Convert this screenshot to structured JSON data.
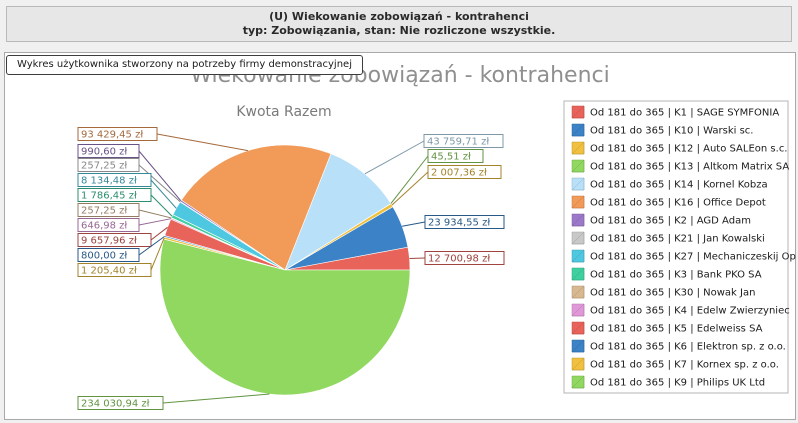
{
  "header": {
    "line1": "(U) Wiekowanie zobowiązań - kontrahenci",
    "line2": "typ: Zobowiązania, stan: Nie rozliczone wszystkie."
  },
  "tooltip": "Wykres użytkownika  stworzony na potrzeby firmy demonstracyjnej",
  "chart_data": {
    "type": "pie",
    "title": "Wiekowanie zobowiązań - kontrahenci",
    "subtitle": "Kwota Razem",
    "legend_placement": "right",
    "slices": [
      {
        "name": "Od 181 do 365 | K1 | SAGE SYMFONIA",
        "value": 12700.98,
        "label": "12 700,98 zł",
        "color": "#e8635a"
      },
      {
        "name": "Od 181 do 365 | K10 | Warski sc.",
        "value": 23934.55,
        "label": "23 934,55 zł",
        "color": "#3b83c6"
      },
      {
        "name": "Od 181 do 365 | K12 | Auto SALEon s.c.",
        "value": 2007.36,
        "label": "2 007,36 zł",
        "color": "#f0c040"
      },
      {
        "name": "Od 181 do 365 | K13 | Altkom Matrix SA",
        "value": 45.51,
        "label": "45,51 zł",
        "color": "#90d860"
      },
      {
        "name": "Od 181 do 365 | K14 | Kornel Kobza",
        "value": 43759.71,
        "label": "43 759,71 zł",
        "color": "#b8e0f8"
      },
      {
        "name": "Od 181 do 365 | K16 | Office Depot",
        "value": 93429.45,
        "label": "93 429,45 zł",
        "color": "#f29a58"
      },
      {
        "name": "Od 181 do 365 | K2 | AGD Adam",
        "value": 990.6,
        "label": "990,60 zł",
        "color": "#9b78c8"
      },
      {
        "name": "Od 181 do 365 | K21 | Jan Kowalski",
        "value": 257.25,
        "label": "257,25 zł",
        "color": "#c8c8c8"
      },
      {
        "name": "Od 181 do 365 | K27 | Mechaniczeskij Op",
        "value": 8134.48,
        "label": "8 134,48 zł",
        "color": "#4ec8e0"
      },
      {
        "name": "Od 181 do 365 | K3 | Bank PKO SA",
        "value": 1786.45,
        "label": "1 786,45 zł",
        "color": "#40d0a0"
      },
      {
        "name": "Od 181 do 365 | K30 | Nowak Jan",
        "value": 257.25,
        "label": "257,25 zł",
        "color": "#d8b890"
      },
      {
        "name": "Od 181 do 365 | K4 | Edelw Zwierzyniec",
        "value": 646.98,
        "label": "646,98 zł",
        "color": "#e098d8"
      },
      {
        "name": "Od 181 do 365 | K5 | Edelweiss SA",
        "value": 9657.96,
        "label": "9 657,96 zł",
        "color": "#e8635a"
      },
      {
        "name": "Od 181 do 365 | K6 | Elektron sp. z o.o.",
        "value": 800.0,
        "label": "800,00 zł",
        "color": "#3b83c6"
      },
      {
        "name": "Od 181 do 365 | K7 | Kornex sp. z o.o.",
        "value": 1205.4,
        "label": "1 205,40 zł",
        "color": "#f0c040"
      },
      {
        "name": "Od 181 do 365 | K9 | Philips UK Ltd",
        "value": 234030.94,
        "label": "234 030,94 zł",
        "color": "#90d860"
      }
    ]
  }
}
